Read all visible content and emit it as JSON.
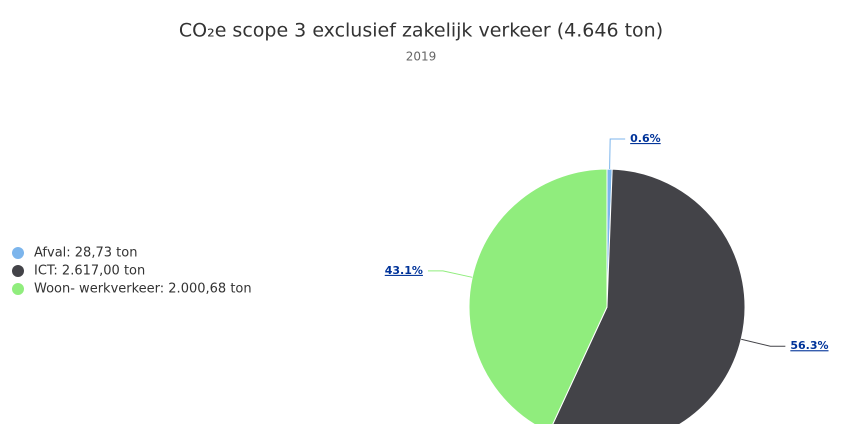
{
  "chart_data": {
    "type": "pie",
    "title": "CO₂e scope 3 exclusief zakelijk verkeer (4.646 ton)",
    "subtitle": "2019",
    "categories": [
      "Afval: 28,73 ton",
      "ICT: 2.617,00 ton",
      "Woon- werkverkeer: 2.000,68 ton"
    ],
    "values": [
      0.6,
      56.3,
      43.1
    ],
    "value_labels": [
      "0.6%",
      "56.3%",
      "43.1%"
    ],
    "colors": [
      "#7cb5ec",
      "#434348",
      "#90ed7d"
    ],
    "legend": "left"
  }
}
